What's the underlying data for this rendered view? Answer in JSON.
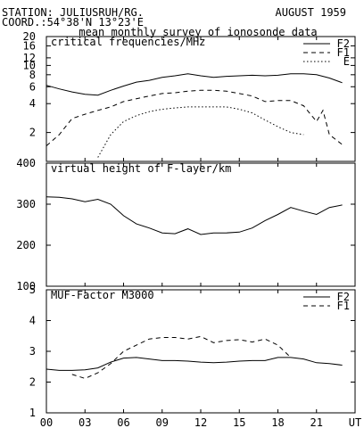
{
  "header": {
    "station": "STATION: JULIUSRUH/RG.",
    "date": "AUGUST 1959",
    "coord": "COORD.:54°38'N 13°23'E",
    "subtitle": "mean monthly survey of ionosonde data"
  },
  "x_ticks": [
    "00",
    "03",
    "06",
    "09",
    "12",
    "15",
    "18",
    "21",
    "UT"
  ],
  "chart_data": [
    {
      "type": "line",
      "title": "critical frequencies/MHz",
      "scale": "log",
      "ylim": [
        1,
        20
      ],
      "yticks": [
        2,
        4,
        6,
        8,
        10,
        12,
        16,
        20
      ],
      "xlim": [
        0,
        24
      ],
      "legend_position": "top-right",
      "series": [
        {
          "name": "F2",
          "dash": "solid",
          "x": [
            0,
            1,
            2,
            3,
            4,
            5,
            6,
            7,
            8,
            9,
            10,
            11,
            12,
            13,
            14,
            15,
            16,
            17,
            18,
            19,
            20,
            21,
            22,
            23
          ],
          "y": [
            6.2,
            5.7,
            5.3,
            5.0,
            4.9,
            5.5,
            6.1,
            6.7,
            7.0,
            7.5,
            7.8,
            8.2,
            7.8,
            7.5,
            7.7,
            7.8,
            7.9,
            7.8,
            7.9,
            8.2,
            8.2,
            8.0,
            7.4,
            6.6
          ]
        },
        {
          "name": "F1",
          "dash": "dashed",
          "x": [
            0,
            1,
            2,
            3,
            4,
            5,
            6,
            7,
            8,
            9,
            10,
            11,
            12,
            13,
            14,
            15,
            16,
            17,
            18,
            19,
            20,
            21,
            21.5,
            22,
            23
          ],
          "y": [
            1.45,
            1.9,
            2.8,
            3.1,
            3.4,
            3.7,
            4.2,
            4.5,
            4.8,
            5.1,
            5.2,
            5.4,
            5.5,
            5.5,
            5.4,
            5.1,
            4.8,
            4.2,
            4.3,
            4.3,
            3.8,
            2.6,
            3.4,
            1.9,
            1.5
          ]
        },
        {
          "name": "E",
          "dash": "dotted",
          "x": [
            4,
            5,
            6,
            7,
            8,
            9,
            10,
            11,
            12,
            13,
            14,
            15,
            16,
            17,
            18,
            19,
            20
          ],
          "y": [
            1.1,
            1.9,
            2.6,
            3.0,
            3.3,
            3.5,
            3.6,
            3.7,
            3.7,
            3.7,
            3.7,
            3.5,
            3.2,
            2.7,
            2.3,
            2.0,
            1.9
          ]
        }
      ]
    },
    {
      "type": "line",
      "title": "virtual height of F-layer/km",
      "ylim": [
        100,
        400
      ],
      "yticks": [
        100,
        200,
        300,
        400
      ],
      "xlim": [
        0,
        24
      ],
      "series": [
        {
          "dash": "solid",
          "x": [
            0,
            1,
            2,
            3,
            4,
            5,
            6,
            7,
            8,
            9,
            10,
            11,
            12,
            13,
            14,
            15,
            16,
            17,
            18,
            19,
            20,
            21,
            22,
            23
          ],
          "y": [
            318,
            317,
            313,
            306,
            312,
            300,
            272,
            252,
            242,
            230,
            228,
            240,
            226,
            230,
            230,
            232,
            242,
            260,
            275,
            292,
            283,
            275,
            292,
            298
          ]
        }
      ]
    },
    {
      "type": "line",
      "title": "MUF-Factor M3000",
      "ylim": [
        1,
        5
      ],
      "yticks": [
        1,
        2,
        3,
        4,
        5
      ],
      "xlim": [
        0,
        24
      ],
      "legend_position": "top-right",
      "series": [
        {
          "name": "F2",
          "dash": "solid",
          "x": [
            0,
            1,
            2,
            3,
            4,
            5,
            6,
            7,
            8,
            9,
            10,
            11,
            12,
            13,
            14,
            15,
            16,
            17,
            18,
            19,
            20,
            21,
            22,
            23
          ],
          "y": [
            2.42,
            2.38,
            2.38,
            2.4,
            2.46,
            2.65,
            2.78,
            2.8,
            2.75,
            2.7,
            2.7,
            2.68,
            2.65,
            2.63,
            2.65,
            2.68,
            2.7,
            2.7,
            2.8,
            2.8,
            2.75,
            2.63,
            2.6,
            2.55
          ]
        },
        {
          "name": "F1",
          "dash": "dashed",
          "x": [
            2,
            3,
            4,
            5,
            6,
            7,
            8,
            9,
            10,
            11,
            12,
            13,
            14,
            15,
            16,
            17,
            18,
            19
          ],
          "y": [
            2.25,
            2.12,
            2.3,
            2.6,
            3.0,
            3.2,
            3.4,
            3.45,
            3.45,
            3.4,
            3.48,
            3.28,
            3.35,
            3.38,
            3.3,
            3.4,
            3.2,
            2.8
          ]
        }
      ]
    }
  ]
}
